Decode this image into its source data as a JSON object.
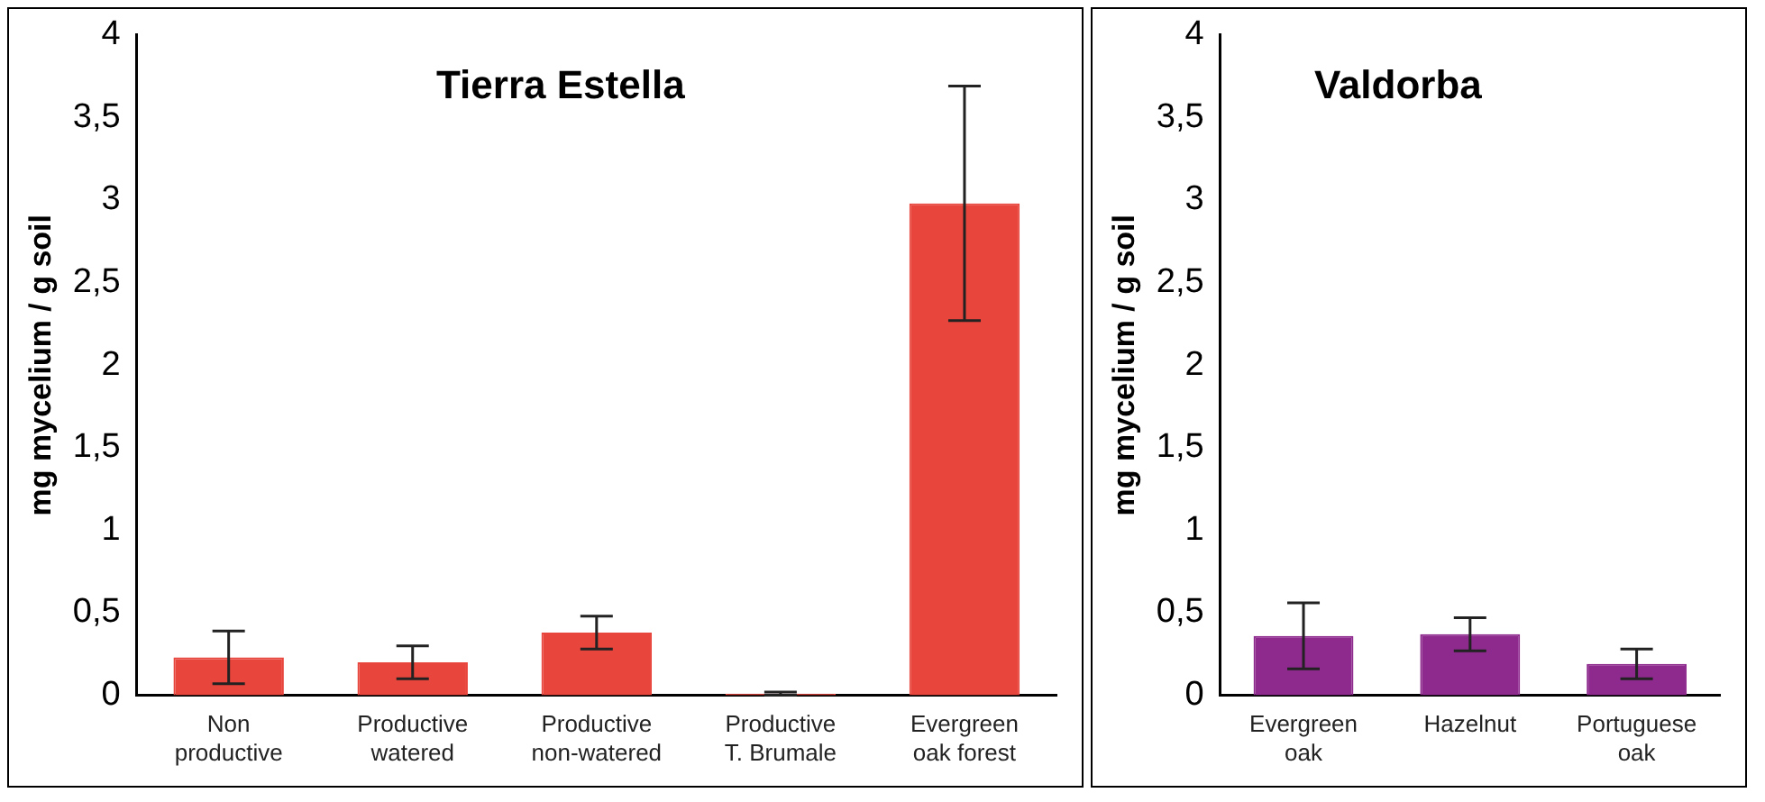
{
  "chart_data": [
    {
      "type": "bar",
      "title": "Tierra Estella",
      "ylabel": "mg mycelium / g soil",
      "categories": [
        "Non\nproductive",
        "Productive\nwatered",
        "Productive\nnon-watered",
        "Productive\nT. Brumale",
        "Evergreen\noak forest"
      ],
      "series": [
        {
          "color": "#e8453c",
          "values": [
            0.23,
            0.2,
            0.38,
            0.01,
            2.98
          ],
          "errors": [
            0.16,
            0.1,
            0.1,
            0.01,
            0.71
          ]
        }
      ],
      "ylim": [
        0,
        4
      ],
      "yticks": [
        0,
        {
          "value": 0.5,
          "label": "0,5"
        },
        1,
        {
          "value": 1.5,
          "label": "1,5"
        },
        2,
        {
          "value": 2.5,
          "label": "2,5"
        },
        3,
        {
          "value": 3.5,
          "label": "3,5"
        },
        4
      ],
      "grid": false,
      "legend": false
    },
    {
      "type": "bar",
      "title": "Valdorba",
      "ylabel": "mg mycelium / g soil",
      "categories": [
        "Evergreen\noak",
        "Hazelnut",
        "Portuguese\noak"
      ],
      "series": [
        {
          "color": "#8e2a8e",
          "values": [
            0.36,
            0.37,
            0.19
          ],
          "errors": [
            0.2,
            0.1,
            0.09
          ]
        }
      ],
      "ylim": [
        0,
        4
      ],
      "yticks": [
        0,
        {
          "value": 0.5,
          "label": "0,5"
        },
        1,
        {
          "value": 1.5,
          "label": "1,5"
        },
        2,
        {
          "value": 2.5,
          "label": "2,5"
        },
        3,
        {
          "value": 3.5,
          "label": "3,5"
        },
        4
      ],
      "grid": false,
      "legend": false
    }
  ]
}
